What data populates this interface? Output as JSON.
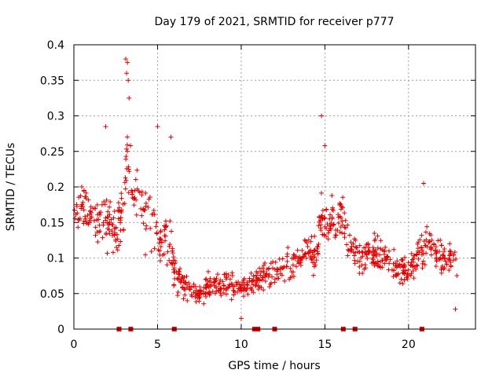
{
  "chart_data": {
    "type": "scatter",
    "title": "Day 179 of 2021, SRMTID for receiver p777",
    "xlabel": "GPS time / hours",
    "ylabel": "SRMTID / TECUs",
    "xlim": [
      0,
      24
    ],
    "ylim": [
      0,
      0.4
    ],
    "x_ticks": [
      0,
      5,
      10,
      15,
      20
    ],
    "x_tick_labels": [
      "0",
      "5",
      "10",
      "15",
      "20"
    ],
    "y_ticks": [
      0,
      0.05,
      0.1,
      0.15,
      0.2,
      0.25,
      0.3,
      0.35,
      0.4
    ],
    "y_tick_labels": [
      "0",
      "0.05",
      "0.1",
      "0.15",
      "0.2",
      "0.25",
      "0.3",
      "0.35",
      "0.4"
    ],
    "grid": true,
    "marker": "plus",
    "series_color": "#e00000",
    "bottom_markers_x": [
      2.7,
      3.4,
      6.0,
      10.8,
      11.0,
      12.0,
      16.1,
      16.8,
      20.8
    ],
    "series": [
      {
        "name": "SRMTID",
        "envelope_x": [
          0,
          0.5,
          1,
          1.5,
          2,
          2.5,
          3,
          3.2,
          3.5,
          4,
          4.5,
          5,
          5.5,
          6,
          6.5,
          7,
          7.5,
          8,
          8.5,
          9,
          9.5,
          10,
          10.5,
          11,
          11.5,
          12,
          12.5,
          13,
          13.5,
          14,
          14.5,
          14.8,
          15,
          15.5,
          16,
          16.5,
          17,
          17.5,
          18,
          18.5,
          19,
          19.5,
          20,
          20.5,
          21,
          21.5,
          22,
          22.5,
          22.9
        ],
        "envelope_mean": [
          0.16,
          0.17,
          0.16,
          0.15,
          0.15,
          0.14,
          0.17,
          0.26,
          0.18,
          0.17,
          0.15,
          0.14,
          0.13,
          0.09,
          0.06,
          0.05,
          0.05,
          0.06,
          0.065,
          0.065,
          0.06,
          0.06,
          0.065,
          0.07,
          0.08,
          0.08,
          0.085,
          0.09,
          0.1,
          0.11,
          0.1,
          0.16,
          0.14,
          0.15,
          0.15,
          0.11,
          0.1,
          0.1,
          0.11,
          0.1,
          0.09,
          0.085,
          0.08,
          0.1,
          0.12,
          0.11,
          0.1,
          0.1,
          0.09
        ],
        "envelope_spread": [
          0.04,
          0.04,
          0.04,
          0.05,
          0.05,
          0.05,
          0.06,
          0.08,
          0.06,
          0.06,
          0.06,
          0.06,
          0.06,
          0.04,
          0.025,
          0.02,
          0.02,
          0.025,
          0.025,
          0.025,
          0.025,
          0.025,
          0.025,
          0.03,
          0.03,
          0.03,
          0.03,
          0.03,
          0.03,
          0.035,
          0.035,
          0.06,
          0.05,
          0.05,
          0.05,
          0.035,
          0.035,
          0.035,
          0.035,
          0.035,
          0.035,
          0.03,
          0.03,
          0.035,
          0.04,
          0.035,
          0.035,
          0.035,
          0.03
        ],
        "points_per_hour": 40,
        "highlight_points": [
          [
            3.1,
            0.38
          ],
          [
            3.2,
            0.375
          ],
          [
            3.15,
            0.36
          ],
          [
            3.25,
            0.35
          ],
          [
            3.3,
            0.325
          ],
          [
            14.8,
            0.3
          ],
          [
            15.0,
            0.258
          ],
          [
            5.0,
            0.285
          ],
          [
            5.8,
            0.27
          ],
          [
            1.9,
            0.285
          ],
          [
            20.9,
            0.205
          ],
          [
            10.0,
            0.015
          ],
          [
            22.8,
            0.028
          ]
        ]
      }
    ]
  }
}
